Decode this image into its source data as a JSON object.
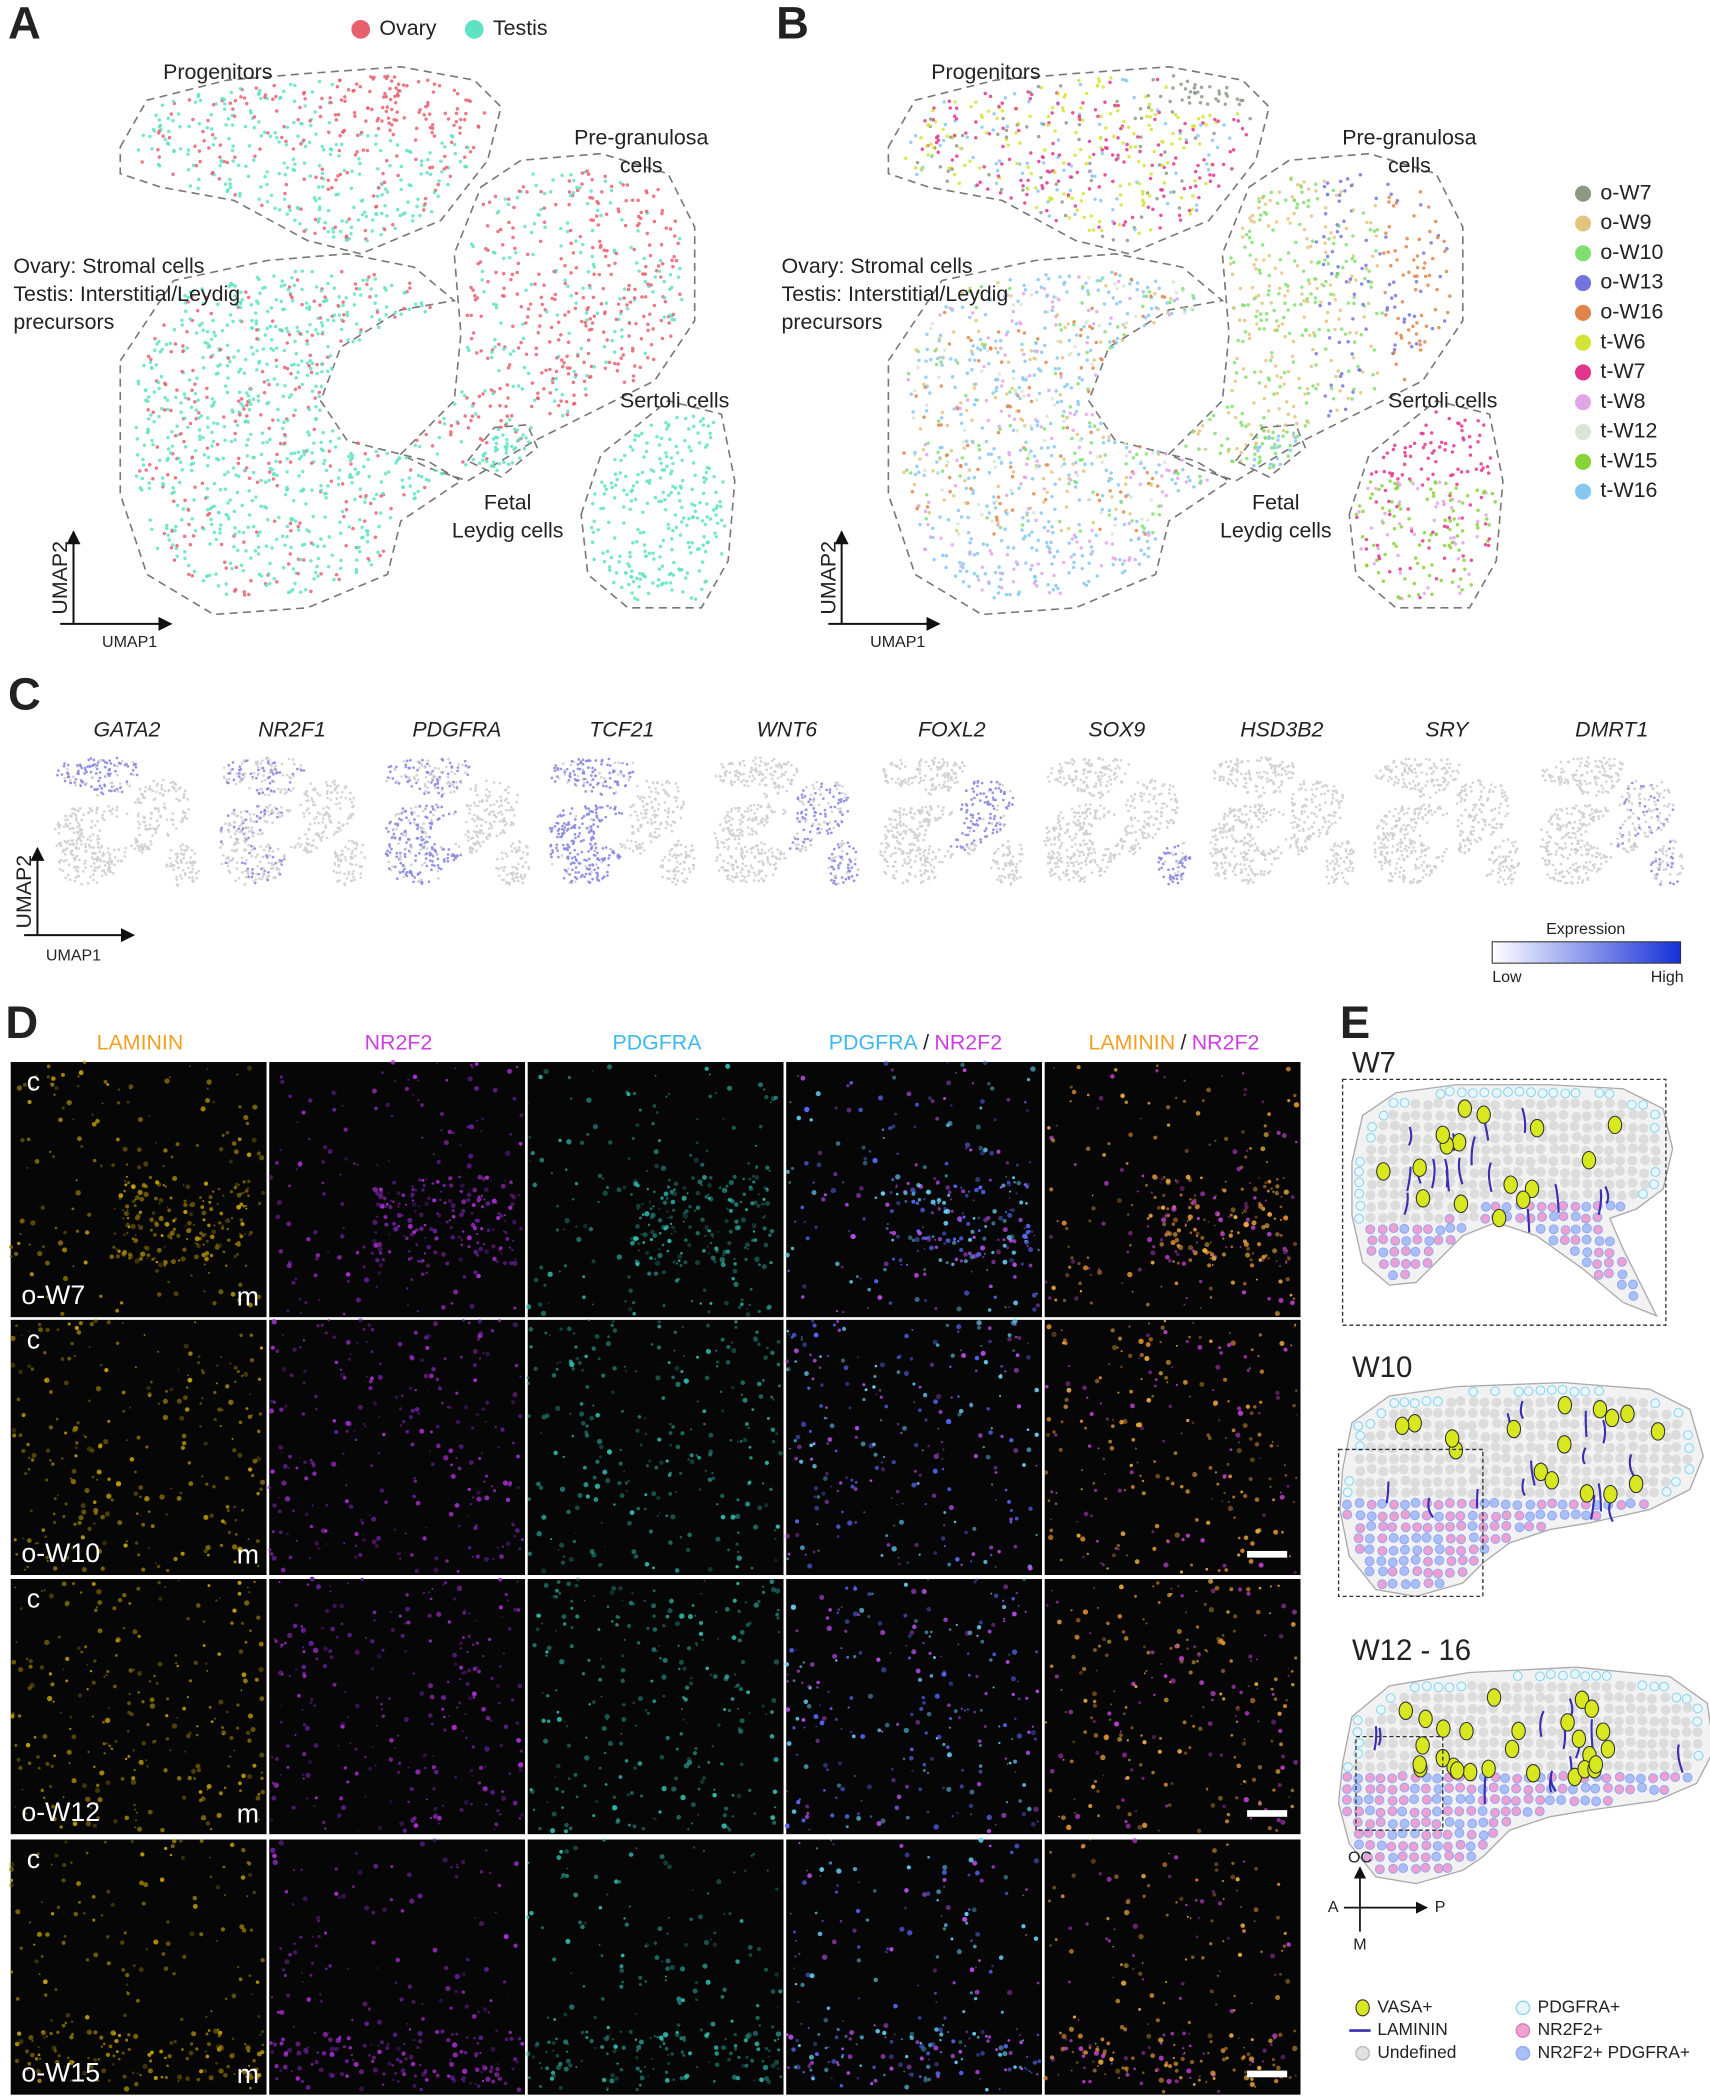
{
  "panels": {
    "A": {
      "label": "A",
      "legend": [
        {
          "name": "Ovary",
          "color": "#e8606e"
        },
        {
          "name": "Testis",
          "color": "#5ee3c2"
        }
      ],
      "clusters": [
        {
          "lines": [
            "Progenitors"
          ]
        },
        {
          "lines": [
            "Pre-granulosa",
            "cells"
          ]
        },
        {
          "lines": [
            "Ovary: Stromal cells",
            "Testis: Interstitial/Leydig",
            "precursors"
          ]
        },
        {
          "lines": [
            "Fetal",
            "Leydig cells"
          ]
        },
        {
          "lines": [
            "Sertoli cells"
          ]
        }
      ],
      "x_axis": "UMAP1",
      "y_axis": "UMAP2"
    },
    "B": {
      "label": "B",
      "legend": [
        {
          "name": "o-W7",
          "color": "#8c9a84"
        },
        {
          "name": "o-W9",
          "color": "#e3c47e"
        },
        {
          "name": "o-W10",
          "color": "#7fe06f"
        },
        {
          "name": "o-W13",
          "color": "#7474e0"
        },
        {
          "name": "o-W16",
          "color": "#e0844a"
        },
        {
          "name": "t-W6",
          "color": "#d4e436"
        },
        {
          "name": "t-W7",
          "color": "#e4358e"
        },
        {
          "name": "t-W8",
          "color": "#e0a6e6"
        },
        {
          "name": "t-W12",
          "color": "#d8e6d2"
        },
        {
          "name": "t-W15",
          "color": "#86d436"
        },
        {
          "name": "t-W16",
          "color": "#86c8f2"
        }
      ],
      "clusters": [
        {
          "lines": [
            "Progenitors"
          ]
        },
        {
          "lines": [
            "Pre-granulosa",
            "cells"
          ]
        },
        {
          "lines": [
            "Ovary: Stromal cells",
            "Testis: Interstitial/Leydig",
            "precursors"
          ]
        },
        {
          "lines": [
            "Fetal",
            "Leydig cells"
          ]
        },
        {
          "lines": [
            "Sertoli cells"
          ]
        }
      ],
      "x_axis": "UMAP1",
      "y_axis": "UMAP2"
    },
    "C": {
      "label": "C",
      "genes": [
        "GATA2",
        "NR2F1",
        "PDGFRA",
        "TCF21",
        "WNT6",
        "FOXL2",
        "SOX9",
        "HSD3B2",
        "SRY",
        "DMRT1"
      ],
      "x_axis": "UMAP1",
      "y_axis": "UMAP2",
      "colorbar": {
        "title": "Expression",
        "low": "Low",
        "high": "High"
      }
    },
    "D": {
      "label": "D",
      "columns": [
        {
          "parts": [
            {
              "text": "LAMININ",
              "color": "#f2a024"
            }
          ]
        },
        {
          "parts": [
            {
              "text": "NR2F2",
              "color": "#cc3ee0"
            }
          ]
        },
        {
          "parts": [
            {
              "text": "PDGFRA",
              "color": "#3cb8ee"
            }
          ]
        },
        {
          "parts": [
            {
              "text": "PDGFRA",
              "color": "#3cb8ee"
            },
            {
              "text": "/",
              "color": "#222222"
            },
            {
              "text": "NR2F2",
              "color": "#cc3ee0"
            }
          ]
        },
        {
          "parts": [
            {
              "text": "LAMININ",
              "color": "#f2a024"
            },
            {
              "text": "/",
              "color": "#222222"
            },
            {
              "text": "NR2F2",
              "color": "#cc3ee0"
            }
          ]
        }
      ],
      "rows": [
        {
          "label": "o-W7",
          "top": "c",
          "bottom": "m",
          "scale_bar": false
        },
        {
          "label": "o-W10",
          "top": "c",
          "bottom": "m",
          "scale_bar": true
        },
        {
          "label": "o-W12",
          "top": "c",
          "bottom": "m",
          "scale_bar": true
        },
        {
          "label": "o-W15",
          "top": "c",
          "bottom": "m",
          "scale_bar": true
        }
      ]
    },
    "E": {
      "label": "E",
      "diagrams": [
        {
          "label": "W7"
        },
        {
          "label": "W10"
        },
        {
          "label": "W12 - 16"
        }
      ],
      "compass": {
        "up": "OC",
        "left": "A",
        "right": "P",
        "down": "M"
      },
      "legend": [
        {
          "name": "VASA+"
        },
        {
          "name": "PDGFRA+"
        },
        {
          "name": "LAMININ"
        },
        {
          "name": "NR2F2+"
        },
        {
          "name": "Undefined"
        },
        {
          "name": "NR2F2+ PDGFRA+"
        }
      ]
    }
  }
}
